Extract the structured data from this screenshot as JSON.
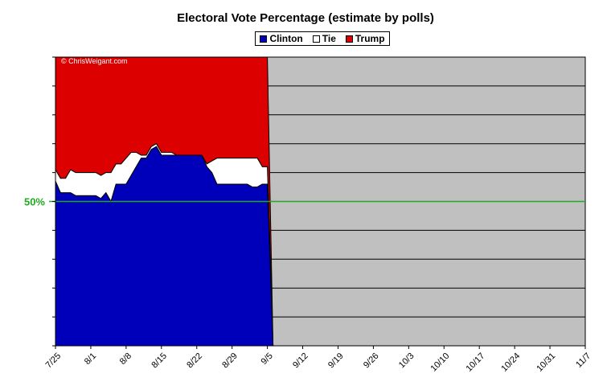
{
  "chart_data": {
    "type": "area",
    "title": "Electoral Vote Percentage (estimate by polls)",
    "watermark": "© ChrisWeigant.com",
    "reference_line": {
      "label": "50%",
      "value": 50,
      "color": "#22aa22"
    },
    "xlim": [
      "7/25",
      "11/7"
    ],
    "ylim": [
      0,
      100
    ],
    "x_tick_labels": [
      "7/25",
      "8/1",
      "8/8",
      "8/15",
      "8/22",
      "8/29",
      "9/5",
      "9/12",
      "9/19",
      "9/26",
      "10/3",
      "10/10",
      "10/17",
      "10/24",
      "10/31",
      "11/7"
    ],
    "grid": true,
    "legend_position": "top-center",
    "colors": {
      "Clinton": "#0000bb",
      "Tie": "#ffffff",
      "Trump": "#dd0000",
      "empty": "#c0c0c0"
    },
    "series": [
      {
        "name": "Clinton",
        "x": [
          "7/25",
          "7/26",
          "7/27",
          "7/28",
          "7/29",
          "7/30",
          "7/31",
          "8/1",
          "8/2",
          "8/3",
          "8/4",
          "8/5",
          "8/6",
          "8/7",
          "8/8",
          "8/9",
          "8/10",
          "8/11",
          "8/12",
          "8/13",
          "8/14",
          "8/15",
          "8/16",
          "8/17",
          "8/18",
          "8/19",
          "8/20",
          "8/21",
          "8/22",
          "8/23",
          "8/24",
          "8/25",
          "8/26",
          "8/27",
          "8/28",
          "8/29",
          "8/30",
          "8/31",
          "9/1",
          "9/2",
          "9/3",
          "9/4",
          "9/5"
        ],
        "values": [
          57,
          53,
          53,
          53,
          52,
          52,
          52,
          52,
          52,
          51,
          53,
          50,
          56,
          56,
          56,
          59,
          62,
          65,
          65,
          68,
          69,
          66,
          66,
          66,
          66,
          66,
          66,
          66,
          66,
          66,
          62,
          60,
          56,
          56,
          56,
          56,
          56,
          56,
          56,
          55,
          55,
          56,
          56
        ]
      },
      {
        "name": "Tie",
        "x": [
          "7/25",
          "7/26",
          "7/27",
          "7/28",
          "7/29",
          "7/30",
          "7/31",
          "8/1",
          "8/2",
          "8/3",
          "8/4",
          "8/5",
          "8/6",
          "8/7",
          "8/8",
          "8/9",
          "8/10",
          "8/11",
          "8/12",
          "8/13",
          "8/14",
          "8/15",
          "8/16",
          "8/17",
          "8/18",
          "8/19",
          "8/20",
          "8/21",
          "8/22",
          "8/23",
          "8/24",
          "8/25",
          "8/26",
          "8/27",
          "8/28",
          "8/29",
          "8/30",
          "8/31",
          "9/1",
          "9/2",
          "9/3",
          "9/4",
          "9/5"
        ],
        "values": [
          4,
          5,
          5,
          8,
          8,
          8,
          8,
          8,
          8,
          8,
          7,
          10,
          7,
          7,
          9,
          8,
          5,
          1,
          1,
          1,
          1,
          1,
          1,
          1,
          0,
          0,
          0,
          0,
          0,
          0,
          1,
          4,
          9,
          9,
          9,
          9,
          9,
          9,
          9,
          10,
          10,
          6,
          6
        ]
      },
      {
        "name": "Trump",
        "x": [
          "7/25",
          "7/26",
          "7/27",
          "7/28",
          "7/29",
          "7/30",
          "7/31",
          "8/1",
          "8/2",
          "8/3",
          "8/4",
          "8/5",
          "8/6",
          "8/7",
          "8/8",
          "8/9",
          "8/10",
          "8/11",
          "8/12",
          "8/13",
          "8/14",
          "8/15",
          "8/16",
          "8/17",
          "8/18",
          "8/19",
          "8/20",
          "8/21",
          "8/22",
          "8/23",
          "8/24",
          "8/25",
          "8/26",
          "8/27",
          "8/28",
          "8/29",
          "8/30",
          "8/31",
          "9/1",
          "9/2",
          "9/3",
          "9/4",
          "9/5"
        ],
        "values": [
          39,
          42,
          42,
          39,
          40,
          40,
          40,
          40,
          40,
          41,
          40,
          40,
          37,
          37,
          35,
          33,
          33,
          34,
          34,
          31,
          30,
          33,
          33,
          33,
          34,
          34,
          34,
          34,
          34,
          34,
          37,
          36,
          35,
          35,
          35,
          35,
          35,
          35,
          35,
          35,
          35,
          38,
          38
        ]
      }
    ]
  }
}
